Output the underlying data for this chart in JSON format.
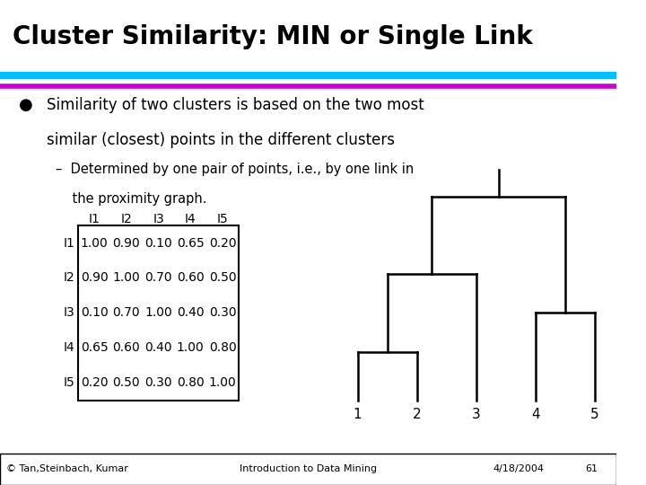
{
  "title": "Cluster Similarity: MIN or Single Link",
  "title_color": "#000000",
  "line1_color": "#00BFFF",
  "line2_color": "#CC00CC",
  "bullet_text_line1": "Similarity of two clusters is based on the two most",
  "bullet_text_line2": "similar (closest) points in the different clusters",
  "sub_text_line1": "–  Determined by one pair of points, i.e., by one link in",
  "sub_text_line2": "    the proximity graph.",
  "matrix_labels": [
    "I1",
    "I2",
    "I3",
    "I4",
    "I5"
  ],
  "matrix_data": [
    [
      1.0,
      0.9,
      0.1,
      0.65,
      0.2
    ],
    [
      0.9,
      1.0,
      0.7,
      0.6,
      0.5
    ],
    [
      0.1,
      0.7,
      1.0,
      0.4,
      0.3
    ],
    [
      0.65,
      0.6,
      0.4,
      1.0,
      0.8
    ],
    [
      0.2,
      0.5,
      0.3,
      0.8,
      1.0
    ]
  ],
  "footer_left": "© Tan,Steinbach, Kumar",
  "footer_center": "Introduction to Data Mining",
  "footer_right": "4/18/2004",
  "footer_page": "61",
  "bg_color": "#ffffff"
}
